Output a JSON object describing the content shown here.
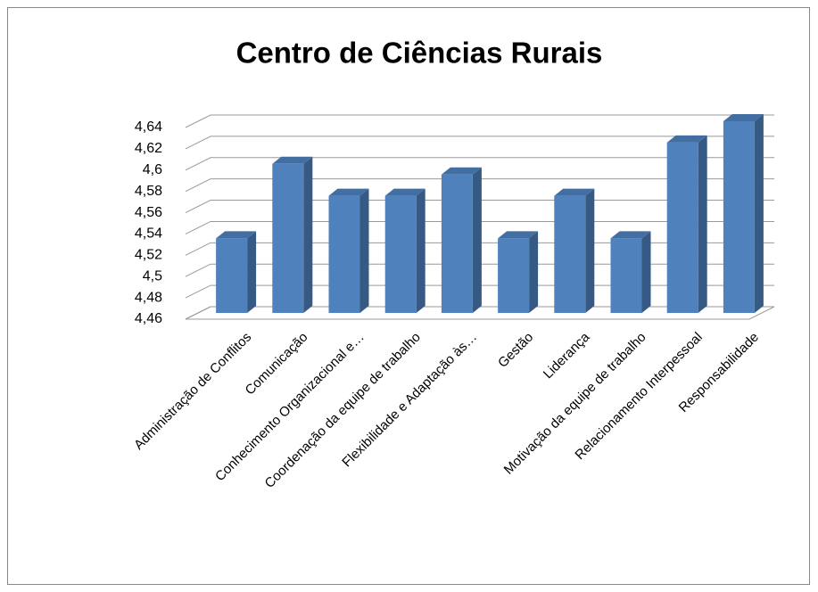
{
  "chart_data": {
    "type": "bar3d",
    "title": "Centro de Ciências Rurais",
    "categories": [
      "Administração de Conflitos",
      "Comunicação",
      "Conhecimento Organizacional e…",
      "Coordenação da equipe de trabalho",
      "Flexibilidade e Adaptação às…",
      "Gestão",
      "Liderança",
      "Motivação da equipe de trabalho",
      "Relacionamento Interpessoal",
      "Responsabilidade"
    ],
    "values": [
      4.53,
      4.6,
      4.57,
      4.57,
      4.59,
      4.53,
      4.57,
      4.53,
      4.62,
      4.64
    ],
    "color": "#4f81bd",
    "ylim": [
      4.46,
      4.64
    ],
    "yticks": [
      {
        "value": 4.46,
        "label": "4,46"
      },
      {
        "value": 4.48,
        "label": "4,48"
      },
      {
        "value": 4.5,
        "label": "4,5"
      },
      {
        "value": 4.52,
        "label": "4,52"
      },
      {
        "value": 4.54,
        "label": "4,54"
      },
      {
        "value": 4.56,
        "label": "4,56"
      },
      {
        "value": 4.58,
        "label": "4,58"
      },
      {
        "value": 4.6,
        "label": "4,6"
      },
      {
        "value": 4.62,
        "label": "4,62"
      },
      {
        "value": 4.64,
        "label": "4,64"
      }
    ],
    "grid": true
  }
}
